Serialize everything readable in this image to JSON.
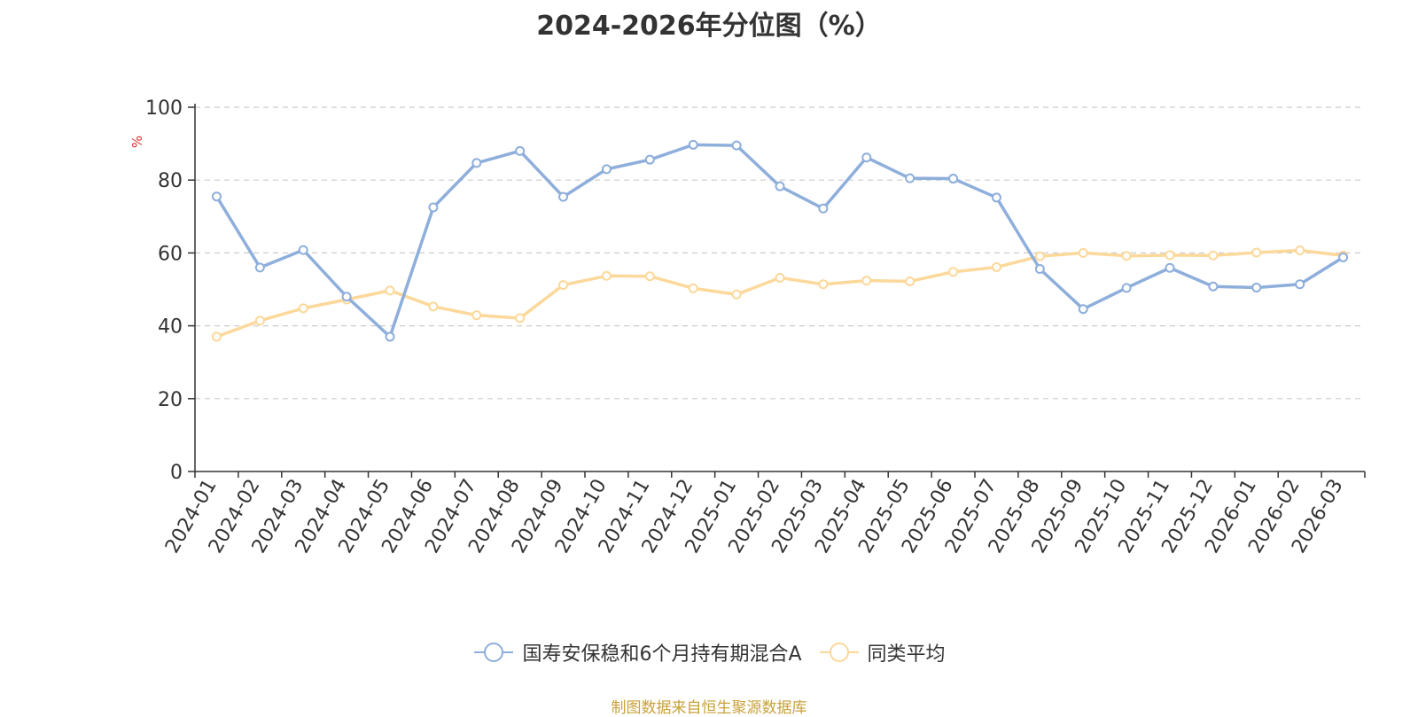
{
  "chart_data": {
    "type": "line",
    "title": "2024-2026年分位图（%）",
    "ylabel": "%",
    "ylim": [
      0,
      100
    ],
    "yticks": [
      0,
      20,
      40,
      60,
      80,
      100
    ],
    "grid": true,
    "legend_position": "bottom",
    "categories": [
      "2024-01",
      "2024-02",
      "2024-03",
      "2024-04",
      "2024-05",
      "2024-06",
      "2024-07",
      "2024-08",
      "2024-09",
      "2024-10",
      "2024-11",
      "2024-12",
      "2025-01",
      "2025-02",
      "2025-03",
      "2025-04",
      "2025-05",
      "2025-06",
      "2025-07",
      "2025-08",
      "2025-09",
      "2025-10",
      "2025-11",
      "2025-12",
      "2026-01",
      "2026-02",
      "2026-03"
    ],
    "series": [
      {
        "name": "国寿安保稳和6个月持有期混合A",
        "color": "#8eaedb",
        "values": [
          75.5,
          56.0,
          60.8,
          48.0,
          37.0,
          72.5,
          84.7,
          88.0,
          75.4,
          83.0,
          85.6,
          89.7,
          89.5,
          78.3,
          72.2,
          86.2,
          80.5,
          80.4,
          75.2,
          55.6,
          44.6,
          50.4,
          55.9,
          50.8,
          50.5,
          51.4,
          58.8
        ]
      },
      {
        "name": "同类平均",
        "color": "#fcd89a",
        "values": [
          37.0,
          41.4,
          44.8,
          47.2,
          49.7,
          45.3,
          42.9,
          42.1,
          51.2,
          53.7,
          53.6,
          50.3,
          48.6,
          53.2,
          51.4,
          52.4,
          52.2,
          54.8,
          56.1,
          59.1,
          60.0,
          59.2,
          59.4,
          59.3,
          60.1,
          60.7,
          59.3
        ]
      }
    ]
  },
  "source_text": "制图数据来自恒生聚源数据库"
}
